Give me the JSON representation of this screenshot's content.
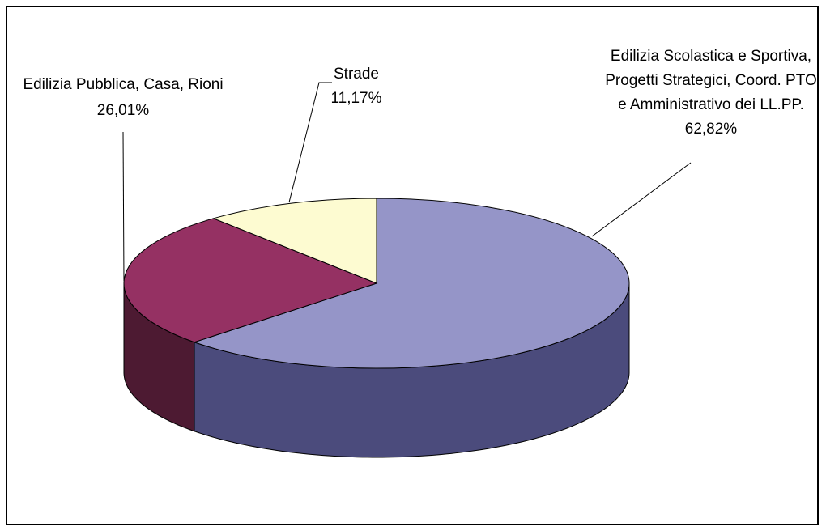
{
  "chart_data": {
    "type": "pie",
    "title": "",
    "three_d": true,
    "legend": "none",
    "slices": [
      {
        "label_lines": [
          "Edilizia Scolastica e Sportiva,",
          "Progetti Strategici, Coord. PTO",
          "e Amministrativo dei LL.PP."
        ],
        "value": 62.82,
        "value_label": "62,82%",
        "top_color": "#9595c8",
        "side_color": "#4b4b7c"
      },
      {
        "label_lines": [
          "Edilizia Pubblica, Casa, Rioni"
        ],
        "value": 26.01,
        "value_label": "26,01%",
        "top_color": "#953163",
        "side_color": "#4d1a32"
      },
      {
        "label_lines": [
          "Strade"
        ],
        "value": 11.17,
        "value_label": "11,17%",
        "top_color": "#fdfbd1",
        "side_color": "#c9c7a0"
      }
    ]
  }
}
